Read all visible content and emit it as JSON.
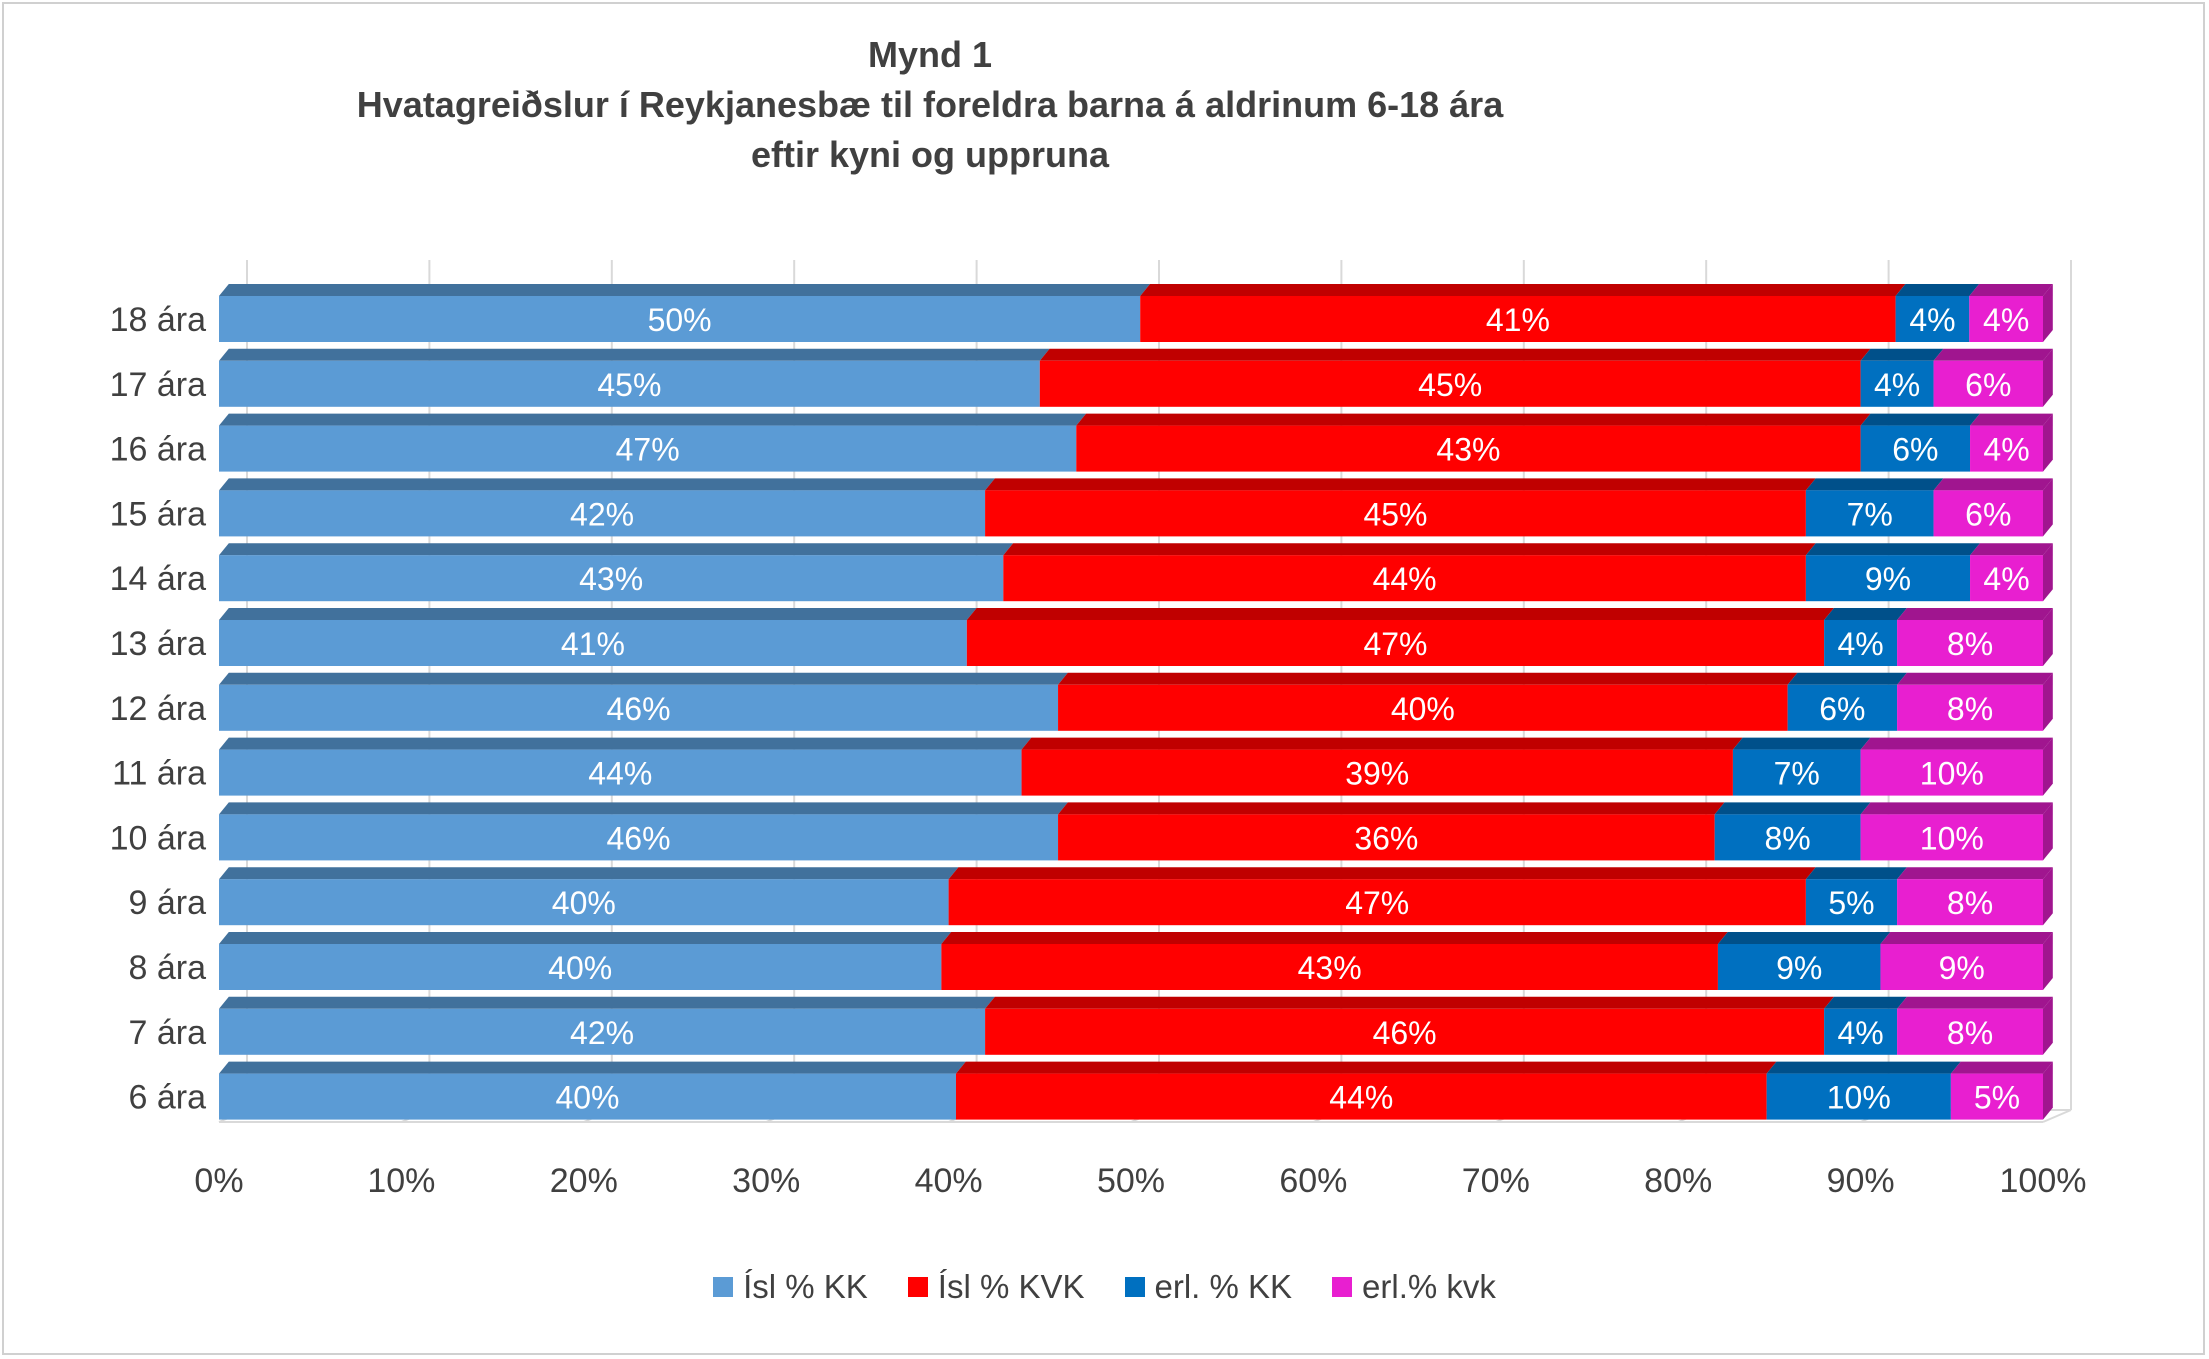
{
  "chart_data": {
    "type": "bar",
    "orientation": "horizontal",
    "stacked": "percent",
    "title": "Mynd 1",
    "subtitle_lines": [
      "Hvatagreiðslur í Reykjanesbæ til foreldra barna á aldrinum 6-18 ára",
      "eftir kyni og uppruna"
    ],
    "categories": [
      "18 ára",
      "17 ára",
      "16 ára",
      "15 ára",
      "14 ára",
      "13 ára",
      "12 ára",
      "11 ára",
      "10 ára",
      "9 ára",
      "8 ára",
      "7 ára",
      "6 ára"
    ],
    "series": [
      {
        "name": "Ísl % KK",
        "color": "#5b9bd5",
        "top_color": "#41719c",
        "values": [
          50,
          45,
          47,
          42,
          43,
          41,
          46,
          44,
          46,
          40,
          40,
          42,
          40
        ]
      },
      {
        "name": "Ísl % KVK",
        "color": "#ff0000",
        "top_color": "#c00000",
        "values": [
          41,
          45,
          43,
          45,
          44,
          47,
          40,
          39,
          36,
          47,
          43,
          46,
          44
        ]
      },
      {
        "name": "erl. % KK",
        "color": "#0070c0",
        "top_color": "#00508a",
        "values": [
          4,
          4,
          6,
          7,
          9,
          4,
          6,
          7,
          8,
          5,
          9,
          4,
          10
        ]
      },
      {
        "name": "erl.% kvk",
        "color": "#e81fd0",
        "top_color": "#a0158f",
        "values": [
          4,
          6,
          4,
          6,
          4,
          8,
          8,
          10,
          10,
          8,
          9,
          8,
          5
        ]
      }
    ],
    "xaxis": {
      "ticks": [
        "0%",
        "10%",
        "20%",
        "30%",
        "40%",
        "50%",
        "60%",
        "70%",
        "80%",
        "90%",
        "100%"
      ],
      "range": [
        0,
        100
      ]
    },
    "grid": true,
    "legend_position": "bottom",
    "data_label_suffix": "%"
  }
}
